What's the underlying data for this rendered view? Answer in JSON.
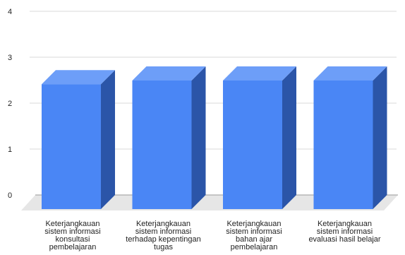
{
  "chart_data": {
    "type": "bar",
    "style": "3d",
    "title": "",
    "xlabel": "",
    "ylabel": "",
    "ylim": [
      0,
      4
    ],
    "yticks": [
      0,
      1,
      2,
      3,
      4
    ],
    "grid": true,
    "legend": "none",
    "categories": [
      [
        "Keterjangkauan",
        "sistem informasi",
        "konsultasi",
        "pembelajaran"
      ],
      [
        "Keterjangkauan",
        "sistem informasi",
        "terhadap kepentingan",
        "tugas"
      ],
      [
        "Keterjangkauan",
        "sistem informasi",
        "bahan ajar",
        "pembelajaran"
      ],
      [
        "Keterjangkauan",
        "sistem informasi",
        "evaluasi hasil belajar"
      ]
    ],
    "values": [
      2.72,
      2.8,
      2.8,
      2.8
    ],
    "colors": {
      "front": "#4a86f5",
      "top": "#6d9ef8",
      "side": "#2b55a8",
      "floor": "#e6e6e6",
      "grid": "#d9d9d9",
      "baseline": "#999999"
    }
  }
}
